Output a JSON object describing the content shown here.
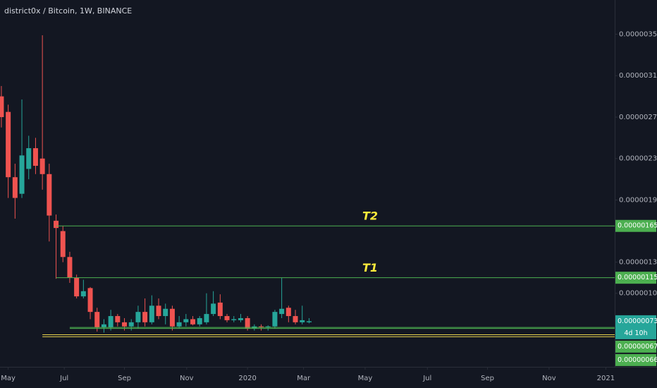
{
  "chart_data": {
    "type": "candlestick",
    "title": "district0x / Bitcoin, 1W, BINANCE",
    "x": [
      0,
      1,
      2,
      3,
      4,
      5,
      6,
      7,
      8,
      9,
      10,
      11,
      12,
      13,
      14,
      15,
      16,
      17,
      18,
      19,
      20,
      21,
      22,
      23,
      24,
      25,
      26,
      27,
      28,
      29,
      30,
      31,
      32,
      33,
      34,
      35,
      36,
      37,
      38,
      39,
      40,
      41,
      42,
      43,
      44,
      45
    ],
    "open": [
      2.9e-06,
      2.75e-06,
      2.12e-06,
      1.96e-06,
      2.2e-06,
      2.4e-06,
      2.3e-06,
      2.15e-06,
      1.7e-06,
      1.6e-06,
      1.35e-06,
      1.15e-06,
      9.7e-07,
      1.05e-06,
      8.2e-07,
      6.7e-07,
      6.7e-07,
      7.8e-07,
      7.2e-07,
      6.8e-07,
      7.2e-07,
      8.2e-07,
      7.2e-07,
      8.8e-07,
      7.8e-07,
      8.5e-07,
      6.8e-07,
      7.2e-07,
      7.5e-07,
      7e-07,
      7.2e-07,
      8e-07,
      9.1e-07,
      7.8e-07,
      7.4e-07,
      7.4e-07,
      7.6e-07,
      6.6e-07,
      6.8e-07,
      6.7e-07,
      6.8e-07,
      8e-07,
      8.6e-07,
      7.8e-07,
      7.2e-07,
      7.2e-07
    ],
    "high": [
      3e-06,
      2.82e-06,
      2.25e-06,
      2.87e-06,
      2.52e-06,
      2.5e-06,
      3.49e-06,
      2.25e-06,
      1.76e-06,
      1.65e-06,
      1.4e-06,
      1.18e-06,
      1.13e-06,
      1.06e-06,
      8.6e-07,
      7.5e-07,
      8.4e-07,
      8e-07,
      7.6e-07,
      7.5e-07,
      8.8e-07,
      9.5e-07,
      9.8e-07,
      9.5e-07,
      9e-07,
      8.8e-07,
      7.8e-07,
      8e-07,
      7.8e-07,
      7.8e-07,
      1e-06,
      1.02e-06,
      9.9e-07,
      8e-07,
      7.8e-07,
      8e-07,
      7.8e-07,
      7e-07,
      7e-07,
      6.9e-07,
      8.4e-07,
      1.15e-06,
      8.8e-07,
      8.4e-07,
      8.8e-07,
      7.6e-07
    ],
    "low": [
      2.6e-06,
      1.92e-06,
      1.72e-06,
      1.92e-06,
      2.1e-06,
      2.15e-06,
      2e-06,
      1.5e-06,
      1.14e-06,
      1.3e-06,
      1.1e-06,
      9.5e-07,
      9.5e-07,
      7.5e-07,
      6.3e-07,
      6.2e-07,
      6.4e-07,
      6.8e-07,
      6.4e-07,
      6.4e-07,
      6.6e-07,
      6.8e-07,
      7e-07,
      7.5e-07,
      7e-07,
      6.4e-07,
      6.6e-07,
      6.8e-07,
      6.9e-07,
      6.8e-07,
      7e-07,
      7.8e-07,
      7.5e-07,
      7.2e-07,
      7.2e-07,
      7.2e-07,
      6.4e-07,
      6.4e-07,
      6.4e-07,
      6.4e-07,
      6.6e-07,
      7.6e-07,
      7.2e-07,
      7e-07,
      7e-07,
      7.1e-07
    ],
    "close": [
      2.7e-06,
      2.12e-06,
      1.92e-06,
      2.33e-06,
      2.4e-06,
      2.23e-06,
      2.15e-06,
      1.75e-06,
      1.63e-06,
      1.35e-06,
      1.15e-06,
      9.7e-07,
      1.02e-06,
      8.2e-07,
      6.7e-07,
      7e-07,
      7.8e-07,
      7.2e-07,
      6.8e-07,
      7.2e-07,
      8.2e-07,
      7.2e-07,
      8.8e-07,
      7.8e-07,
      8.5e-07,
      6.8e-07,
      7.2e-07,
      7.5e-07,
      7e-07,
      7.6e-07,
      8e-07,
      9e-07,
      7.8e-07,
      7.4e-07,
      7.5e-07,
      7.6e-07,
      6.6e-07,
      6.8e-07,
      6.7e-07,
      6.8e-07,
      8.2e-07,
      8.5e-07,
      7.8e-07,
      7.2e-07,
      7.4e-07,
      7.3e-07
    ],
    "up_color": "#26a69a",
    "down_color": "#ef5350",
    "xlim": [
      -0.2,
      89.7
    ],
    "xticks": [
      {
        "value": 1.0,
        "label": "May"
      },
      {
        "value": 9.2,
        "label": "Jul"
      },
      {
        "value": 18.0,
        "label": "Sep"
      },
      {
        "value": 27.1,
        "label": "Nov"
      },
      {
        "value": 36.0,
        "label": "2020"
      },
      {
        "value": 44.2,
        "label": "Mar"
      },
      {
        "value": 53.2,
        "label": "May"
      },
      {
        "value": 62.3,
        "label": "Jul"
      },
      {
        "value": 71.1,
        "label": "Sep"
      },
      {
        "value": 80.1,
        "label": "Nov"
      },
      {
        "value": 88.4,
        "label": "2021"
      }
    ],
    "ylim": [
      2.9e-07,
      3.83e-06
    ],
    "yticks": [
      {
        "value": 3.5e-06,
        "label": "0.00000350"
      },
      {
        "value": 3.1e-06,
        "label": "0.00000310"
      },
      {
        "value": 2.7e-06,
        "label": "0.00000270"
      },
      {
        "value": 2.3e-06,
        "label": "0.00000230"
      },
      {
        "value": 1.9e-06,
        "label": "0.00000190"
      },
      {
        "value": 1.3e-06,
        "label": "0.00000130"
      },
      {
        "value": 1e-06,
        "label": "0.00000100"
      }
    ],
    "levels": [
      {
        "value": 1.65e-06,
        "label": "0.00000165",
        "annotation": "T2",
        "x_start": 8,
        "color": "#4caf50"
      },
      {
        "value": 1.15e-06,
        "label": "0.00000115",
        "annotation": "T1",
        "x_start": 8,
        "color": "#4caf50"
      },
      {
        "value": 6.7e-07,
        "label": "0.00000067",
        "x_start": 10,
        "color": "#4caf50"
      },
      {
        "value": 6.6e-07,
        "label": "0.00000066",
        "x_start": 10,
        "color": "#4caf50"
      },
      {
        "value": 6e-07,
        "x_start": 6,
        "color": "#e8d44d"
      },
      {
        "value": 5.8e-07,
        "x_start": 6,
        "color": "#e8d44d"
      }
    ],
    "last_price": {
      "value": 7.3e-07,
      "label": "0.00000073",
      "countdown": "4d 10h",
      "color": "#26a69a"
    }
  }
}
